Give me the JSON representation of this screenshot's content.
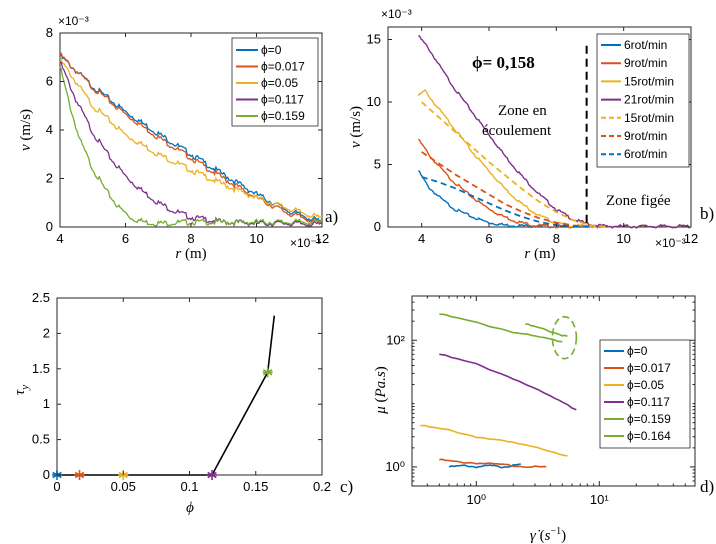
{
  "chart_data": [
    {
      "id": "a",
      "type": "line",
      "panel_label": "a)",
      "xlabel": "r (m)",
      "ylabel": "v (m/s)",
      "xlim": [
        0.004,
        0.012
      ],
      "ylim": [
        0,
        0.008
      ],
      "xticks": [
        "4",
        "6",
        "8",
        "10",
        "12"
      ],
      "yticks": [
        "0",
        "2",
        "4",
        "6",
        "8"
      ],
      "x_exponent": "×10⁻³",
      "y_exponent": "×10⁻³",
      "legend_position": "top-right",
      "series": [
        {
          "name": "ϕ=0",
          "color": "#0072BD",
          "points": [
            [
              4.0,
              7.05
            ],
            [
              5.0,
              5.8
            ],
            [
              6.0,
              4.75
            ],
            [
              7.0,
              3.85
            ],
            [
              8.0,
              3.0
            ],
            [
              9.0,
              2.15
            ],
            [
              10.0,
              1.35
            ],
            [
              11.0,
              0.65
            ],
            [
              12.0,
              0.2
            ]
          ]
        },
        {
          "name": "ϕ=0.017",
          "color": "#D95319",
          "points": [
            [
              4.0,
              7.1
            ],
            [
              5.0,
              5.75
            ],
            [
              6.0,
              4.65
            ],
            [
              7.0,
              3.7
            ],
            [
              8.0,
              2.85
            ],
            [
              9.0,
              2.0
            ],
            [
              10.0,
              1.2
            ],
            [
              11.0,
              0.55
            ],
            [
              12.0,
              0.15
            ]
          ]
        },
        {
          "name": "ϕ=0.05",
          "color": "#EDB120",
          "points": [
            [
              4.0,
              6.9
            ],
            [
              5.0,
              5.0
            ],
            [
              6.0,
              3.8
            ],
            [
              7.0,
              3.0
            ],
            [
              8.0,
              2.35
            ],
            [
              9.0,
              1.75
            ],
            [
              10.0,
              1.2
            ],
            [
              11.0,
              0.75
            ],
            [
              12.0,
              0.35
            ]
          ]
        },
        {
          "name": "ϕ=0.117",
          "color": "#7E2F8E",
          "points": [
            [
              4.0,
              6.8
            ],
            [
              4.5,
              5.2
            ],
            [
              5.0,
              3.9
            ],
            [
              5.5,
              2.9
            ],
            [
              6.0,
              2.1
            ],
            [
              6.5,
              1.5
            ],
            [
              7.0,
              1.0
            ],
            [
              7.5,
              0.65
            ],
            [
              8.0,
              0.4
            ],
            [
              9.0,
              0.2
            ],
            [
              10.0,
              0.15
            ],
            [
              11.0,
              0.15
            ],
            [
              12.0,
              0.1
            ]
          ]
        },
        {
          "name": "ϕ=0.159",
          "color": "#77AC30",
          "points": [
            [
              4.0,
              6.6
            ],
            [
              4.3,
              5.0
            ],
            [
              4.6,
              3.6
            ],
            [
              5.0,
              2.4
            ],
            [
              5.4,
              1.5
            ],
            [
              5.8,
              0.8
            ],
            [
              6.2,
              0.35
            ],
            [
              6.6,
              0.2
            ],
            [
              7.0,
              0.15
            ],
            [
              8.0,
              0.2
            ],
            [
              9.0,
              0.2
            ],
            [
              10.0,
              0.2
            ],
            [
              11.0,
              0.2
            ],
            [
              12.0,
              0.2
            ]
          ]
        }
      ]
    },
    {
      "id": "b",
      "type": "line",
      "panel_label": "b)",
      "xlabel": "r (m)",
      "ylabel": "v (m/s)",
      "xlim": [
        0.003,
        0.012
      ],
      "ylim": [
        0,
        0.016
      ],
      "xticks": [
        "4",
        "6",
        "8",
        "10",
        "12"
      ],
      "yticks": [
        "0",
        "5",
        "10",
        "15"
      ],
      "x_exponent": "×10⁻³",
      "y_exponent": "×10⁻³",
      "legend_position": "top-right",
      "annotations": {
        "phi": "ϕ= 0,158",
        "flow_zone": [
          "Zone en",
          "écoulement"
        ],
        "frozen_zone": "Zone figée",
        "boundary_x": 0.0089
      },
      "series": [
        {
          "name": "6rot/min",
          "color": "#0072BD",
          "dash": false,
          "points": [
            [
              3.9,
              4.5
            ],
            [
              4.2,
              3.2
            ],
            [
              4.6,
              2.2
            ],
            [
              5.0,
              1.4
            ],
            [
              5.5,
              0.8
            ],
            [
              6.0,
              0.35
            ],
            [
              6.5,
              0.15
            ],
            [
              7.0,
              0.1
            ],
            [
              8.0,
              0.05
            ],
            [
              9.0,
              0.05
            ],
            [
              10.0,
              0.05
            ],
            [
              11.0,
              0.05
            ],
            [
              12.0,
              0.05
            ]
          ]
        },
        {
          "name": "9rot/min",
          "color": "#D95319",
          "dash": false,
          "points": [
            [
              3.9,
              7.0
            ],
            [
              4.3,
              5.5
            ],
            [
              4.8,
              4.0
            ],
            [
              5.3,
              2.8
            ],
            [
              5.8,
              1.8
            ],
            [
              6.3,
              1.0
            ],
            [
              6.8,
              0.45
            ],
            [
              7.3,
              0.15
            ],
            [
              8.0,
              0.05
            ],
            [
              9.0,
              0.05
            ],
            [
              10.0,
              0.05
            ],
            [
              12.0,
              0.05
            ]
          ]
        },
        {
          "name": "15rot/min",
          "color": "#EDB120",
          "dash": false,
          "points": [
            [
              3.9,
              10.5
            ],
            [
              4.1,
              10.9
            ],
            [
              4.4,
              9.8
            ],
            [
              5.0,
              7.8
            ],
            [
              5.5,
              6.0
            ],
            [
              6.0,
              4.5
            ],
            [
              6.5,
              3.0
            ],
            [
              7.0,
              1.8
            ],
            [
              7.5,
              0.9
            ],
            [
              8.0,
              0.3
            ],
            [
              8.5,
              0.1
            ],
            [
              9.0,
              0.05
            ],
            [
              12.0,
              0.05
            ]
          ]
        },
        {
          "name": "21rot/min",
          "color": "#7E2F8E",
          "dash": false,
          "points": [
            [
              3.9,
              15.3
            ],
            [
              4.2,
              14.3
            ],
            [
              4.6,
              12.6
            ],
            [
              5.0,
              11.0
            ],
            [
              5.5,
              9.2
            ],
            [
              6.0,
              7.4
            ],
            [
              6.5,
              5.6
            ],
            [
              7.0,
              4.0
            ],
            [
              7.5,
              2.6
            ],
            [
              8.0,
              1.4
            ],
            [
              8.5,
              0.6
            ],
            [
              9.0,
              0.2
            ],
            [
              9.5,
              0.05
            ],
            [
              12.0,
              0.05
            ]
          ]
        },
        {
          "name": "15rot/min",
          "color": "#EDB120",
          "dash": true,
          "points": [
            [
              4.0,
              10.0
            ],
            [
              4.5,
              8.8
            ],
            [
              5.0,
              7.6
            ],
            [
              5.5,
              6.4
            ],
            [
              6.0,
              5.2
            ],
            [
              6.5,
              4.1
            ],
            [
              7.0,
              3.0
            ],
            [
              7.5,
              2.0
            ],
            [
              8.0,
              1.2
            ],
            [
              8.5,
              0.55
            ],
            [
              9.0,
              0.15
            ],
            [
              9.5,
              0.02
            ]
          ]
        },
        {
          "name": "9rot/min",
          "color": "#D95319",
          "dash": true,
          "points": [
            [
              4.0,
              6.0
            ],
            [
              4.5,
              5.1
            ],
            [
              5.0,
              4.2
            ],
            [
              5.5,
              3.4
            ],
            [
              6.0,
              2.6
            ],
            [
              6.5,
              1.8
            ],
            [
              7.0,
              1.2
            ],
            [
              7.5,
              0.7
            ],
            [
              8.0,
              0.35
            ],
            [
              8.5,
              0.12
            ],
            [
              9.0,
              0.02
            ]
          ]
        },
        {
          "name": "6rot/min",
          "color": "#0072BD",
          "dash": true,
          "points": [
            [
              4.0,
              4.0
            ],
            [
              4.5,
              3.6
            ],
            [
              5.0,
              3.1
            ],
            [
              5.5,
              2.5
            ],
            [
              6.0,
              1.9
            ],
            [
              6.5,
              1.3
            ],
            [
              7.0,
              0.8
            ],
            [
              7.5,
              0.4
            ],
            [
              8.0,
              0.15
            ],
            [
              8.5,
              0.05
            ],
            [
              9.0,
              0.01
            ]
          ]
        }
      ]
    },
    {
      "id": "c",
      "type": "line",
      "panel_label": "c)",
      "xlabel": "ϕ",
      "ylabel": "τ_y",
      "xlim": [
        0,
        0.2
      ],
      "ylim": [
        0,
        2.5
      ],
      "xticks": [
        "0",
        "0.05",
        "0.1",
        "0.15",
        "0.2"
      ],
      "yticks": [
        "0",
        "0.5",
        "1",
        "1.5",
        "2",
        "2.5"
      ],
      "line": [
        [
          0,
          0
        ],
        [
          0.017,
          0
        ],
        [
          0.05,
          0
        ],
        [
          0.117,
          0
        ],
        [
          0.159,
          1.45
        ],
        [
          0.164,
          2.25
        ]
      ],
      "markers": [
        {
          "x": 0,
          "y": 0,
          "color": "#0072BD"
        },
        {
          "x": 0.017,
          "y": 0,
          "color": "#D95319"
        },
        {
          "x": 0.05,
          "y": 0,
          "color": "#EDB120"
        },
        {
          "x": 0.117,
          "y": 0,
          "color": "#7E2F8E"
        },
        {
          "x": 0.159,
          "y": 1.45,
          "color": "#77AC30"
        }
      ]
    },
    {
      "id": "d",
      "type": "line",
      "panel_label": "d)",
      "xlabel": "γ̇ (s⁻¹)",
      "ylabel": "μ (Pa.s)",
      "xscale": "log",
      "yscale": "log",
      "xlim": [
        0.3,
        60
      ],
      "ylim": [
        0.5,
        500
      ],
      "xticks": [
        "10⁰",
        "10¹"
      ],
      "yticks": [
        "10⁰",
        "10²"
      ],
      "legend_position": "center-right",
      "series": [
        {
          "name": "ϕ=0",
          "color": "#0072BD",
          "points": [
            [
              0.6,
              1.0
            ],
            [
              0.8,
              1.05
            ],
            [
              1.0,
              1.0
            ],
            [
              1.3,
              1.05
            ],
            [
              1.6,
              1.0
            ],
            [
              2.0,
              1.05
            ],
            [
              2.3,
              1.1
            ]
          ]
        },
        {
          "name": "ϕ=0.017",
          "color": "#D95319",
          "points": [
            [
              0.5,
              1.3
            ],
            [
              0.7,
              1.2
            ],
            [
              1.0,
              1.15
            ],
            [
              1.5,
              1.1
            ],
            [
              2.0,
              1.05
            ],
            [
              3.0,
              1.0
            ],
            [
              3.7,
              1.0
            ]
          ]
        },
        {
          "name": "ϕ=0.05",
          "color": "#EDB120",
          "points": [
            [
              0.35,
              4.5
            ],
            [
              0.6,
              3.8
            ],
            [
              1.0,
              3.0
            ],
            [
              2.0,
              2.4
            ],
            [
              4.0,
              1.8
            ],
            [
              5.5,
              1.5
            ]
          ]
        },
        {
          "name": "ϕ=0.117",
          "color": "#7E2F8E",
          "points": [
            [
              0.5,
              60
            ],
            [
              1.0,
              42
            ],
            [
              2.0,
              25
            ],
            [
              4.0,
              13
            ],
            [
              6.5,
              8
            ]
          ]
        },
        {
          "name": "ϕ=0.159",
          "color": "#77AC30",
          "points": [
            [
              0.5,
              260
            ],
            [
              1.0,
              190
            ],
            [
              2.0,
              135
            ],
            [
              3.0,
              115
            ],
            [
              5.0,
              95
            ]
          ]
        },
        {
          "name": "ϕ=0.164",
          "color": "#77AC30",
          "points": [
            [
              2.5,
              180
            ],
            [
              3.5,
              150
            ],
            [
              5.0,
              120
            ],
            [
              5.5,
              115
            ]
          ]
        }
      ],
      "ellipse": {
        "cx": 5.2,
        "cy": 110,
        "color": "#77AC30"
      }
    }
  ]
}
